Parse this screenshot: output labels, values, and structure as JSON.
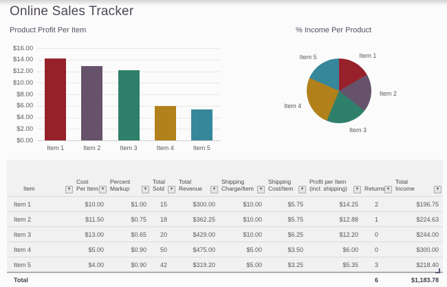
{
  "app": {
    "title": "Online Sales Tracker"
  },
  "chart_data": [
    {
      "type": "bar",
      "title": "Product Profit Per Item",
      "categories": [
        "Item 1",
        "Item 2",
        "Item 3",
        "Item 4",
        "Item 5"
      ],
      "values": [
        14.25,
        12.88,
        12.2,
        6.0,
        5.35
      ],
      "xlabel": "",
      "ylabel": "",
      "ylim": [
        0,
        16
      ],
      "y_tick_labels": [
        "$16.00",
        "$14.00",
        "$12.00",
        "$10.00",
        "$8.00",
        "$6.00",
        "$4.00",
        "$2.00",
        "$0.00"
      ],
      "grid": true,
      "legend": false,
      "colors": [
        "#97212A",
        "#66526B",
        "#2F806B",
        "#B2811B",
        "#37879B"
      ]
    },
    {
      "type": "pie",
      "title": "% Income Per Product",
      "categories": [
        "Item 1",
        "Item 2",
        "Item 3",
        "Item 4",
        "Item 5"
      ],
      "values": [
        196.75,
        224.63,
        244.0,
        300.0,
        218.4
      ],
      "percentages": [
        16.6,
        19.0,
        20.6,
        25.3,
        18.4
      ],
      "start_angle_deg": 0,
      "direction": "clockwise",
      "legend": false,
      "colors": [
        "#97212A",
        "#66526B",
        "#2F806B",
        "#B2811B",
        "#37879B"
      ]
    }
  ],
  "table": {
    "columns": [
      {
        "id": "item",
        "label_line1": "",
        "label_line2": "Item"
      },
      {
        "id": "cost",
        "label_line1": "Cost",
        "label_line2": "Per Item"
      },
      {
        "id": "markup",
        "label_line1": "Percent",
        "label_line2": "Markup"
      },
      {
        "id": "sold",
        "label_line1": "Total",
        "label_line2": "Sold"
      },
      {
        "id": "revenue",
        "label_line1": "Total",
        "label_line2": "Revenue"
      },
      {
        "id": "ship_charge",
        "label_line1": "Shipping",
        "label_line2": "Charge/Item"
      },
      {
        "id": "ship_cost",
        "label_line1": "Shipping",
        "label_line2": "Cost/Item"
      },
      {
        "id": "profit",
        "label_line1": "Profit per Item",
        "label_line2": "(incl. shipping)"
      },
      {
        "id": "returns",
        "label_line1": "",
        "label_line2": "Returns"
      },
      {
        "id": "income",
        "label_line1": "Total",
        "label_line2": "Income"
      }
    ],
    "rows": [
      [
        "Item 1",
        "$10.00",
        "$1.00",
        "15",
        "$300.00",
        "$10.00",
        "$5.75",
        "$14.25",
        "2",
        "$196.75"
      ],
      [
        "Item 2",
        "$11.50",
        "$0.75",
        "18",
        "$362.25",
        "$10.00",
        "$5.75",
        "$12.88",
        "1",
        "$224.63"
      ],
      [
        "Item 3",
        "$13.00",
        "$0.65",
        "20",
        "$429.00",
        "$10.00",
        "$6.25",
        "$12.20",
        "0",
        "$244.00"
      ],
      [
        "Item 4",
        "$5.00",
        "$0.90",
        "50",
        "$475.00",
        "$5.00",
        "$3.50",
        "$6.00",
        "0",
        "$300.00"
      ],
      [
        "Item 5",
        "$4.00",
        "$0.90",
        "42",
        "$319.20",
        "$5.00",
        "$3.25",
        "$5.35",
        "3",
        "$218.40"
      ]
    ],
    "total": {
      "label": "Total",
      "returns": "6",
      "income": "$1,183.78"
    }
  },
  "icons": {
    "filter_dropdown": "▼"
  }
}
